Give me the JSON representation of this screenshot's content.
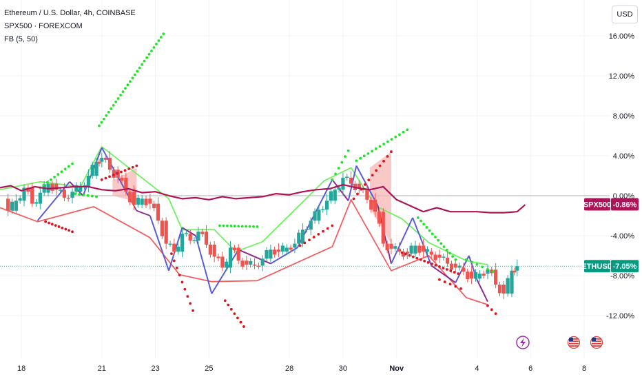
{
  "legend": {
    "main": "Ethereum / U.S. Dollar, 4h, COINBASE",
    "compare": "SPX500 · FOREXCOM",
    "indicator": "FB (5, 50)"
  },
  "currency_button": "USD",
  "colors": {
    "up": "#26a69a",
    "down": "#ef5350",
    "spx": "#ad1457",
    "sar_up": "#22e32a",
    "sar_down": "#e0141e",
    "band_up": "#6ff060",
    "band_down": "#f06060",
    "zigzag_blue": "#5b5bd6",
    "zigzag_purple": "#8e2a8e",
    "eth_tag": "#089981"
  },
  "chart_data": {
    "type": "line",
    "title": "Ethereum / U.S. Dollar, 4h, COINBASE",
    "ylabel": "",
    "xlabel": "",
    "y_unit": "%",
    "ylim": [
      -14.5,
      17.5
    ],
    "xlim": [
      17.2,
      9.0
    ],
    "y_ticks": [
      "16.00%",
      "12.00%",
      "8.00%",
      "4.00%",
      "0.00%",
      "-4.00%",
      "-8.00%",
      "-12.00%"
    ],
    "y_tick_values": [
      16,
      12,
      8,
      4,
      0,
      -4,
      -8,
      -12
    ],
    "x_ticks": [
      {
        "label": "18",
        "day": 18
      },
      {
        "label": "21",
        "day": 21
      },
      {
        "label": "23",
        "day": 23
      },
      {
        "label": "25",
        "day": 25
      },
      {
        "label": "28",
        "day": 28
      },
      {
        "label": "30",
        "day": 30
      },
      {
        "label": "Nov",
        "day": 32
      },
      {
        "label": "4",
        "day": 35
      },
      {
        "label": "6",
        "day": 37
      },
      {
        "label": "8",
        "day": 39
      }
    ],
    "last_values": [
      {
        "label": "SPX500",
        "value": "-0.86%",
        "y": -0.86
      },
      {
        "label": "ETHUSD",
        "value": "-7.05%",
        "y": -7.05
      }
    ],
    "series": [
      {
        "name": "SPX500",
        "x": [
          17.2,
          17.6,
          18.0,
          18.5,
          19.0,
          19.5,
          20.0,
          20.5,
          21.0,
          21.5,
          22.0,
          22.5,
          23.0,
          23.5,
          24.0,
          24.5,
          25.0,
          25.5,
          26.0,
          26.5,
          27.0,
          27.5,
          28.0,
          28.5,
          29.0,
          29.5,
          30.0,
          30.5,
          31.0,
          31.5,
          32.0,
          32.5,
          33.0,
          33.5,
          34.0,
          34.5,
          35.0,
          35.5,
          36.0,
          36.5,
          36.8
        ],
        "y": [
          0.8,
          1.0,
          0.5,
          0.9,
          0.7,
          0.8,
          0.9,
          0.9,
          0.6,
          0.5,
          0.7,
          0.3,
          0.4,
          0.0,
          -0.3,
          -0.2,
          -0.4,
          -0.1,
          -0.3,
          -0.2,
          -0.1,
          0.2,
          0.1,
          0.4,
          0.6,
          0.7,
          1.1,
          0.8,
          0.6,
          0.9,
          -0.4,
          -1.0,
          -1.6,
          -1.2,
          -1.6,
          -1.6,
          -1.6,
          -1.7,
          -1.7,
          -1.6,
          -0.9
        ]
      },
      {
        "name": "ETHUSD",
        "x": [
          17.2,
          17.5,
          17.8,
          18.1,
          18.4,
          18.7,
          19.0,
          19.3,
          19.6,
          19.9,
          20.2,
          20.5,
          20.8,
          21.0,
          21.3,
          21.6,
          21.9,
          22.2,
          22.5,
          22.8,
          23.1,
          23.4,
          23.7,
          24.0,
          24.3,
          24.6,
          24.9,
          25.2,
          25.5,
          25.8,
          26.1,
          26.4,
          26.7,
          27.0,
          27.3,
          27.6,
          27.9,
          28.2,
          28.5,
          28.8,
          29.1,
          29.4,
          29.7,
          30.0,
          30.3,
          30.6,
          30.9,
          31.2,
          31.5,
          31.8,
          32.1,
          32.4,
          32.7,
          33.0,
          33.3,
          33.6,
          33.9,
          34.2,
          34.5,
          34.8,
          35.1,
          35.4,
          35.7,
          36.0,
          36.3,
          36.5
        ],
        "y": [
          -0.3,
          -1.5,
          -0.5,
          0.8,
          -0.8,
          0.3,
          1.2,
          0.6,
          -0.2,
          0.4,
          0.9,
          2.0,
          3.4,
          3.8,
          2.6,
          1.8,
          0.4,
          -0.9,
          -0.3,
          -0.8,
          -2.5,
          -4.8,
          -5.6,
          -3.8,
          -4.5,
          -3.6,
          -4.9,
          -6.1,
          -7.2,
          -5.2,
          -6.5,
          -6.9,
          -7.0,
          -6.3,
          -5.4,
          -5.6,
          -5.2,
          -4.8,
          -3.4,
          -2.5,
          -1.4,
          -0.5,
          0.6,
          1.8,
          1.2,
          0.7,
          -0.4,
          -1.6,
          -4.8,
          -5.3,
          -5.6,
          -5.8,
          -5.0,
          -5.6,
          -5.9,
          -6.2,
          -6.8,
          -7.2,
          -7.6,
          -8.3,
          -7.8,
          -7.4,
          -8.9,
          -9.8,
          -7.5,
          -7.05
        ]
      },
      {
        "name": "",
        "x": [
          17.2,
          18.6,
          20.7,
          22.8,
          23.9,
          25.1,
          26.8,
          29.6,
          30.3,
          31.8,
          33.2,
          34.6,
          35.4
        ],
        "y": [
          -1.2,
          -2.6,
          -1.1,
          -4.2,
          -7.9,
          -8.6,
          -8.5,
          -5.1,
          -0.4,
          -7.5,
          -6.0,
          -10.2,
          -10.9
        ]
      },
      {
        "name": "",
        "x": [
          17.2,
          18.7,
          20.2,
          21.0,
          23.5,
          24.0,
          25.2,
          26.0,
          27.0,
          29.3,
          30.3,
          31.2,
          32.2,
          33.2,
          34.6,
          35.4
        ],
        "y": [
          0.6,
          1.4,
          0.9,
          4.9,
          -0.3,
          -3.4,
          -3.4,
          -5.6,
          -4.6,
          1.5,
          2.8,
          -1.0,
          -2.3,
          -4.7,
          -6.5,
          -6.9
        ]
      }
    ]
  }
}
